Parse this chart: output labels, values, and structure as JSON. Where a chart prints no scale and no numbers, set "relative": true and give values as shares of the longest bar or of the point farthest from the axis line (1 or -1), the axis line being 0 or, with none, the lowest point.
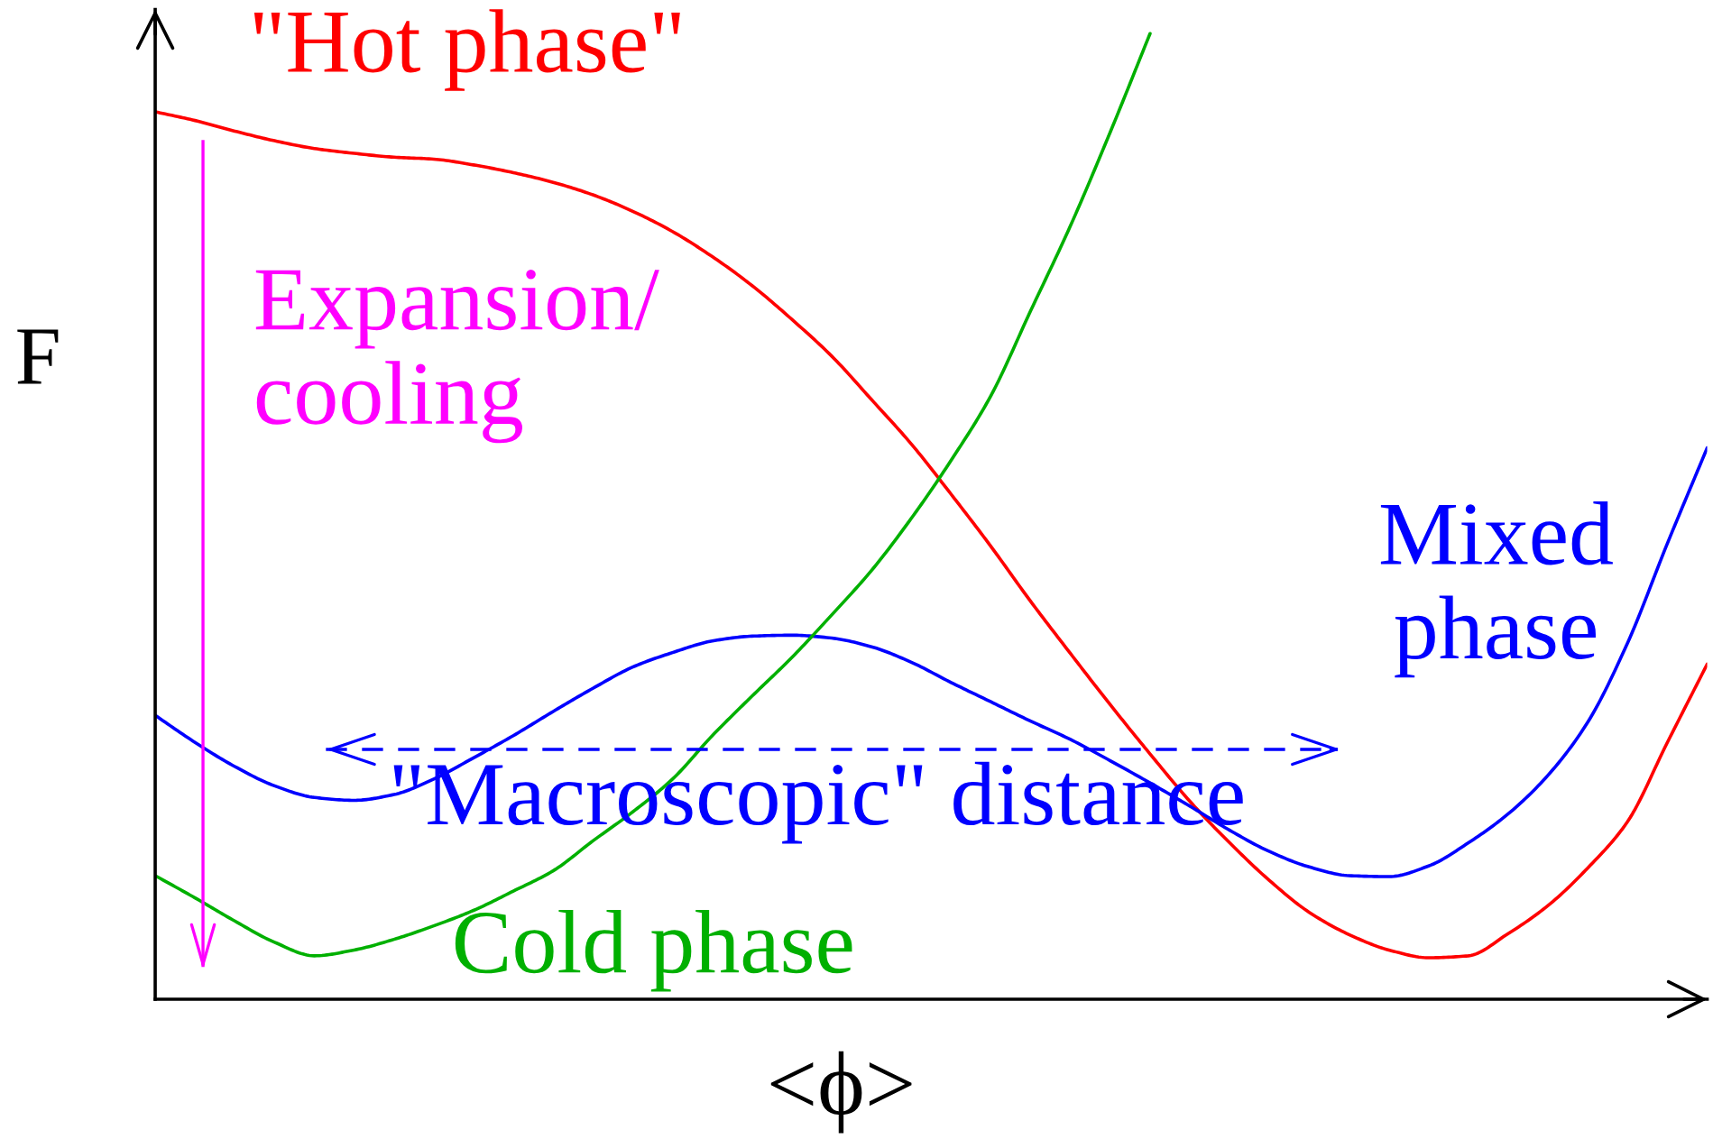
{
  "chart_data": {
    "type": "line",
    "relative": true,
    "xlabel": "<ϕ>",
    "ylabel": "F",
    "categories": [
      null,
      null,
      null,
      null,
      null,
      null,
      null,
      null,
      null,
      null,
      null,
      null,
      null,
      null,
      null,
      null,
      null,
      null,
      null,
      null,
      null,
      null,
      null,
      null,
      null,
      null,
      null,
      null,
      null,
      null,
      null,
      null,
      null,
      null,
      null,
      null,
      null,
      null,
      null,
      null
    ],
    "series": [
      {
        "name": "\"Hot phase\"",
        "color": "#ff0000",
        "values": [
          0.919,
          0.91,
          0.899,
          0.889,
          0.881,
          0.876,
          0.872,
          0.87,
          0.864,
          0.856,
          0.846,
          0.833,
          0.816,
          0.795,
          0.769,
          0.739,
          0.704,
          0.666,
          0.621,
          0.575,
          0.523,
          0.469,
          0.412,
          0.358,
          0.305,
          0.254,
          0.205,
          0.162,
          0.123,
          0.09,
          0.067,
          0.051,
          0.043,
          0.045,
          0.068,
          0.097,
          0.136,
          0.184,
          0.266,
          0.347
        ]
      },
      {
        "name": "Mixed\nphase",
        "color": "#0000ff",
        "values": [
          0.294,
          0.266,
          0.241,
          0.221,
          0.209,
          0.206,
          0.212,
          0.228,
          0.25,
          0.273,
          0.298,
          0.322,
          0.344,
          0.359,
          0.371,
          0.376,
          0.377,
          0.374,
          0.365,
          0.349,
          0.328,
          0.308,
          0.288,
          0.269,
          0.247,
          0.224,
          0.2,
          0.175,
          0.153,
          0.137,
          0.128,
          0.127,
          0.138,
          0.162,
          0.192,
          0.232,
          0.287,
          0.369,
          0.472,
          0.571
        ]
      },
      {
        "name": "Cold phase",
        "color": "#00b000",
        "values": [
          0.128,
          0.105,
          0.081,
          0.059,
          0.045,
          0.051,
          0.062,
          0.076,
          0.092,
          0.112,
          0.133,
          0.164,
          0.194,
          0.228,
          0.273,
          0.314,
          0.354,
          0.398,
          0.444,
          0.498,
          0.558,
          0.625,
          0.713,
          0.801,
          0.898,
          1,
          null,
          null,
          null,
          null,
          null,
          null,
          null,
          null,
          null,
          null,
          null,
          null,
          null,
          null
        ]
      }
    ],
    "annotations": [
      "Expansion/\ncooling",
      "\"Macroscopic\" distance"
    ]
  }
}
